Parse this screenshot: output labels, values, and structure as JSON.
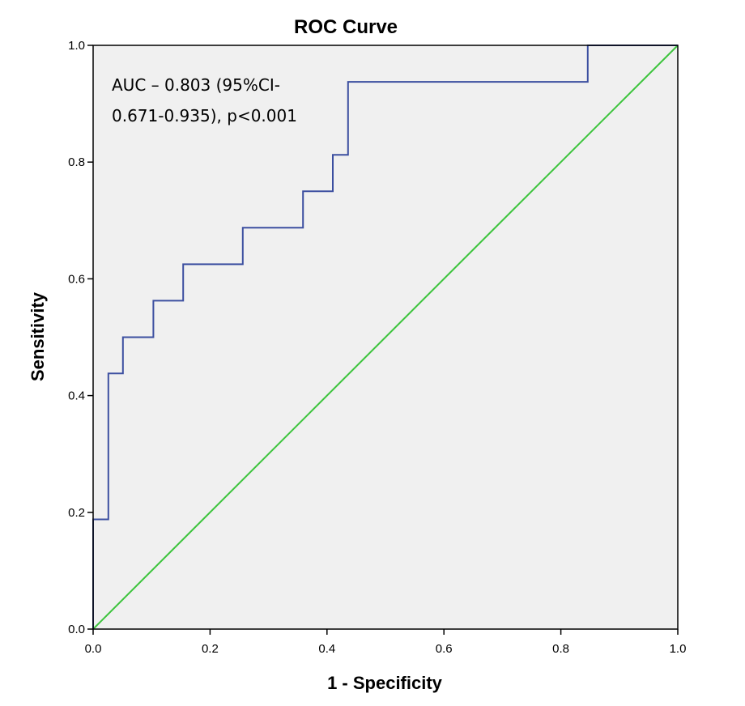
{
  "chart_data": {
    "type": "line",
    "title": "ROC Curve",
    "xlabel": "1 - Specificity",
    "ylabel": "Sensitivity",
    "xlim": [
      0,
      1
    ],
    "ylim": [
      0,
      1
    ],
    "xticks": [
      "0.0",
      "0.2",
      "0.4",
      "0.6",
      "0.8",
      "1.0"
    ],
    "yticks": [
      "0.0",
      "0.2",
      "0.4",
      "0.6",
      "0.8",
      "1.0"
    ],
    "grid": false,
    "annotation": [
      "AUC – 0.803 (95%CI-",
      "0.671-0.935), p<0.001"
    ],
    "series": [
      {
        "color": "#3c4fa0",
        "style": "step",
        "x": [
          0,
          0,
          0.026,
          0.026,
          0.051,
          0.051,
          0.103,
          0.103,
          0.154,
          0.154,
          0.256,
          0.256,
          0.359,
          0.359,
          0.41,
          0.41,
          0.436,
          0.436,
          0.846,
          0.846,
          1.0
        ],
        "y": [
          0,
          0.188,
          0.188,
          0.438,
          0.438,
          0.5,
          0.5,
          0.5625,
          0.5625,
          0.625,
          0.625,
          0.6875,
          0.6875,
          0.75,
          0.75,
          0.8125,
          0.8125,
          0.9375,
          0.9375,
          1.0,
          1.0
        ]
      },
      {
        "color": "#3cc43c",
        "style": "reference",
        "x": [
          0,
          1
        ],
        "y": [
          0,
          1
        ]
      }
    ],
    "colors": {
      "plot_background": "#f0f0f0",
      "frame": "#000000"
    }
  }
}
